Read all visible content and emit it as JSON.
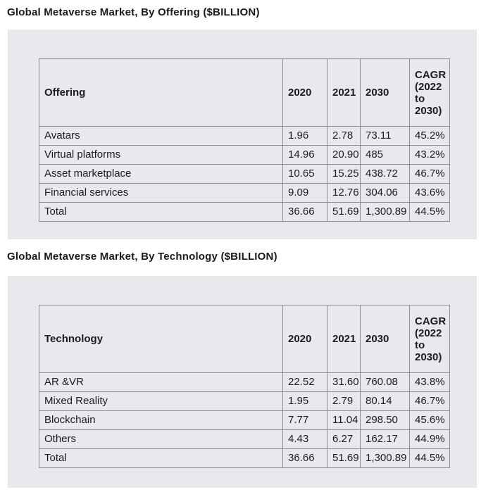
{
  "page": {
    "background": "#ffffff",
    "panel_background": "#e8e9ed",
    "table_border_outer": "#767676",
    "table_border_inner": "#8f8f8f",
    "text_color": "#1c1c1c"
  },
  "chart_data": [
    {
      "type": "table",
      "title": "Global Metaverse Market, By Offering ($BILLION)",
      "columns": [
        "Offering",
        "2020",
        "2021",
        "2030",
        "CAGR (2022 to 2030)"
      ],
      "rows": [
        [
          "Avatars",
          "1.96",
          "2.78",
          "73.11",
          "45.2%"
        ],
        [
          "Virtual platforms",
          "14.96",
          "20.90",
          "485",
          "43.2%"
        ],
        [
          "Asset marketplace",
          "10.65",
          "15.25",
          "438.72",
          "46.7%"
        ],
        [
          "Financial services",
          "9.09",
          "12.76",
          "304.06",
          "43.6%"
        ],
        [
          "Total",
          "36.66",
          "51.69",
          "1,300.89",
          "44.5%"
        ]
      ]
    },
    {
      "type": "table",
      "title": "Global Metaverse Market, By Technology ($BILLION)",
      "columns": [
        "Technology",
        "2020",
        "2021",
        "2030",
        "CAGR (2022 to 2030)"
      ],
      "rows": [
        [
          "AR &VR",
          "22.52",
          "31.60",
          "760.08",
          "43.8%"
        ],
        [
          "Mixed Reality",
          "1.95",
          "2.79",
          "80.14",
          "46.7%"
        ],
        [
          "Blockchain",
          "7.77",
          "11.04",
          "298.50",
          "45.6%"
        ],
        [
          "Others",
          "4.43",
          "6.27",
          "162.17",
          "44.9%"
        ],
        [
          "Total",
          "36.66",
          "51.69",
          "1,300.89",
          "44.5%"
        ]
      ]
    }
  ]
}
